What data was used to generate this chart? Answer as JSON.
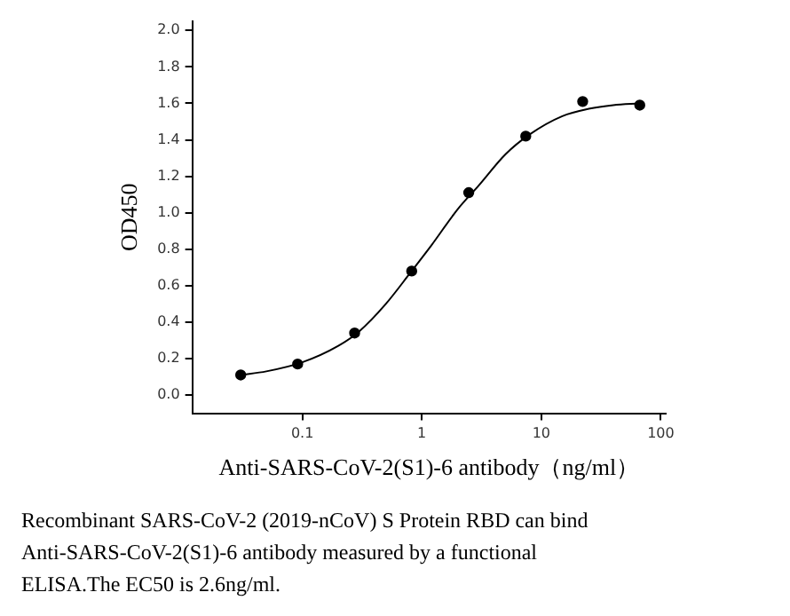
{
  "chart_data": {
    "type": "scatter",
    "xlabel": "Anti-SARS-CoV-2(S1)-6 antibody（ng/ml）",
    "ylabel": "OD450",
    "log": "x",
    "grid": false,
    "legend": false,
    "xlim": [
      0.012,
      110
    ],
    "xticks": [
      0.1,
      1,
      10,
      100
    ],
    "ylim": [
      -0.1,
      2.05
    ],
    "yticks": [
      {
        "value": 0,
        "label": "0.0"
      },
      {
        "value": 0.2,
        "label": "0.2"
      },
      {
        "value": 0.4,
        "label": "0.4"
      },
      {
        "value": 0.6,
        "label": "0.6"
      },
      {
        "value": 0.8,
        "label": "0.8"
      },
      {
        "value": 1,
        "label": "1.0"
      },
      {
        "value": 1.2,
        "label": "1.2"
      },
      {
        "value": 1.4,
        "label": "1.4"
      },
      {
        "value": 1.6,
        "label": "1.6"
      },
      {
        "value": 1.8,
        "label": "1.8"
      },
      {
        "value": 2,
        "label": "2.0"
      }
    ],
    "series": [
      {
        "type": "scatter",
        "color": "#000000",
        "marker": "circle",
        "x": [
          0.0305,
          0.0914,
          0.274,
          0.823,
          2.47,
          7.41,
          22.2,
          66.7
        ],
        "values": [
          0.11,
          0.17,
          0.34,
          0.68,
          1.11,
          1.42,
          1.61,
          1.59
        ]
      },
      {
        "type": "line",
        "color": "#000000",
        "marker": "none",
        "line_style": "solid",
        "x": [
          0.0305,
          0.05,
          0.1,
          0.2,
          0.3,
          0.5,
          0.8,
          1.2,
          2,
          3,
          5,
          8,
          15,
          25,
          40,
          66.7
        ],
        "values": [
          0.11,
          0.13,
          0.18,
          0.27,
          0.35,
          0.5,
          0.67,
          0.82,
          1.02,
          1.15,
          1.32,
          1.43,
          1.53,
          1.57,
          1.59,
          1.6
        ]
      }
    ],
    "annotations": [
      "Recombinant SARS-CoV-2 (2019-nCoV) S Protein RBD can bind Anti-SARS-CoV-2(S1)-6 antibody measured by a functional ELISA.The EC50 is 2.6ng/ml."
    ]
  }
}
